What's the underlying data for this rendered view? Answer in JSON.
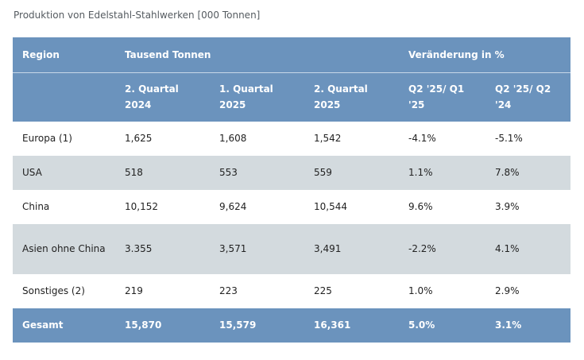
{
  "caption": "Produktion von Edelstahl-Stahlwerken [000 Tonnen]",
  "header": {
    "region": "Region",
    "group_tonnes": "Tausend Tonnen",
    "group_change": "Veränderung in %",
    "columns": [
      "2. Quartal 2024",
      "1. Quartal 2025",
      "2. Quartal 2025",
      "Q2 '25/ Q1 '25",
      "Q2 '25/ Q2 '24"
    ]
  },
  "rows": [
    [
      "Europa (1)",
      "1,625",
      "1,608",
      "1,542",
      "-4.1%",
      "-5.1%"
    ],
    [
      "USA",
      "518",
      "553",
      "559",
      "1.1%",
      "7.8%"
    ],
    [
      "China",
      "10,152",
      "9,624",
      "10,544",
      "9.6%",
      "3.9%"
    ],
    [
      "Asien ohne China",
      "3.355",
      "3,571",
      "3,491",
      "-2.2%",
      "4.1%"
    ],
    [
      "Sonstiges (2)",
      "219",
      "223",
      "225",
      "1.0%",
      "2.9%"
    ]
  ],
  "total": [
    "Gesamt",
    "15,870",
    "15,579",
    "16,361",
    "5.0%",
    "3.1%"
  ],
  "colors": {
    "header_bg": "#6b93bd",
    "row_alt_bg": "#d3dade",
    "header_text": "#ffffff"
  }
}
